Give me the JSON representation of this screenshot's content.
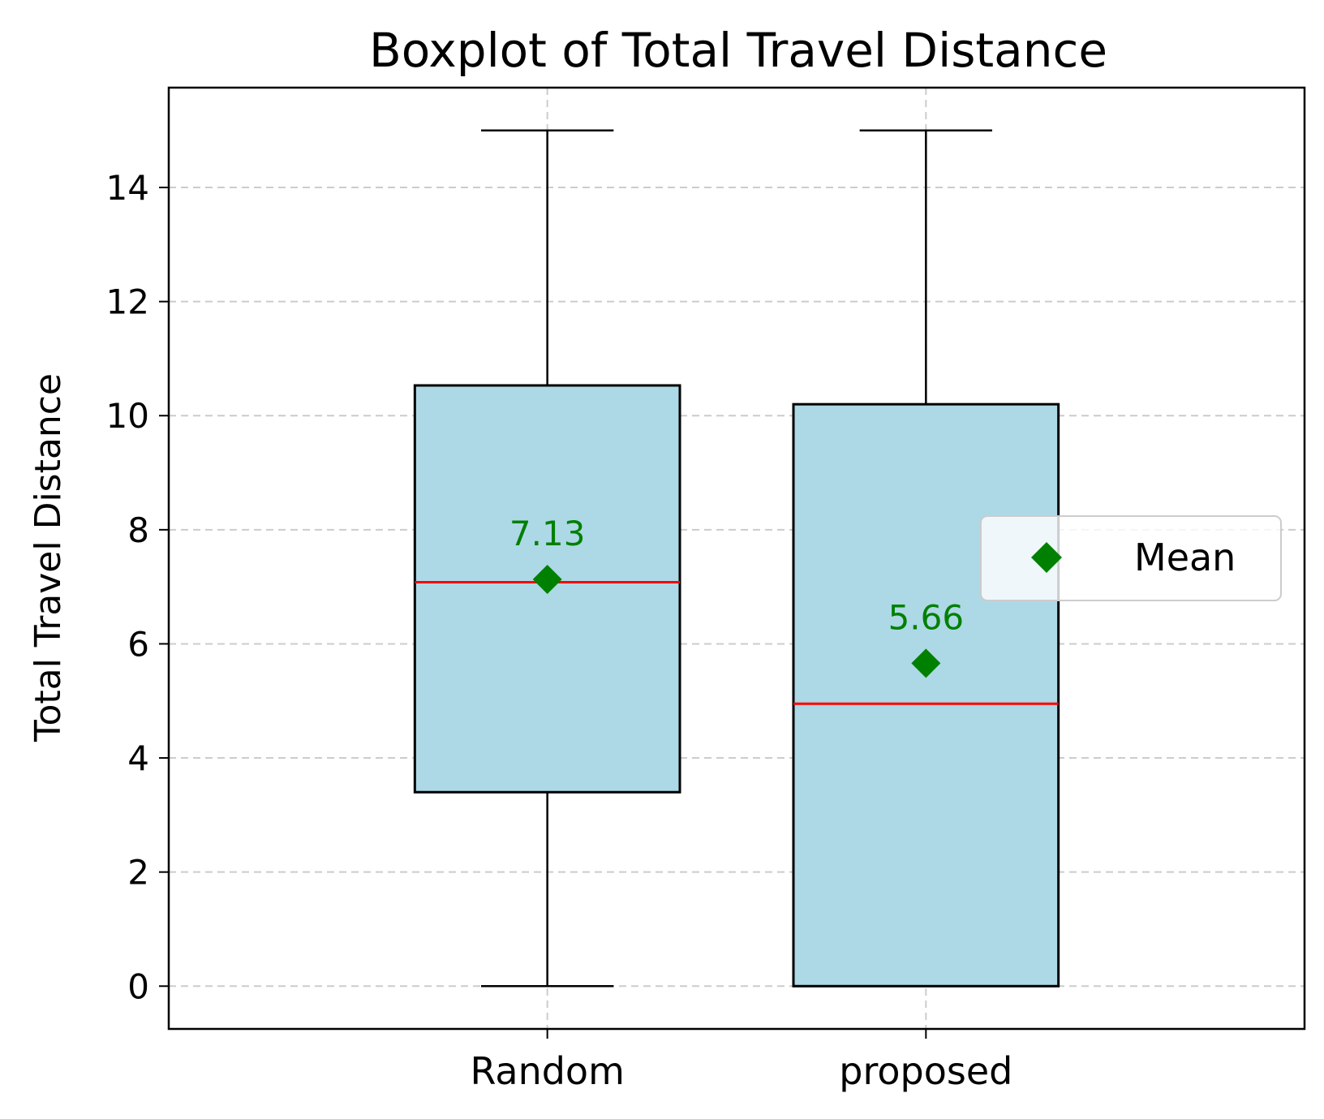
{
  "chart_data": {
    "type": "boxplot",
    "title": "Boxplot of Total Travel Distance",
    "xlabel": "",
    "ylabel": "Total Travel Distance",
    "categories": [
      "Random",
      "proposed"
    ],
    "ylim": [
      -0.75,
      15.75
    ],
    "yticks": [
      0,
      2,
      4,
      6,
      8,
      10,
      12,
      14
    ],
    "grid": true,
    "boxes": [
      {
        "category": "Random",
        "whislo": 0,
        "q1": 3.4,
        "med": 7.08,
        "q3": 10.53,
        "whishi": 15,
        "mean": 7.13,
        "mean_label": "7.13"
      },
      {
        "category": "proposed",
        "whislo": 0,
        "q1": 0,
        "med": 4.95,
        "q3": 10.2,
        "whishi": 15,
        "mean": 5.66,
        "mean_label": "5.66"
      }
    ],
    "legend": {
      "position": "center-right",
      "entries": [
        {
          "label": "Mean",
          "marker": "diamond"
        }
      ]
    },
    "colors": {
      "box_fill": "#add8e6",
      "box_edge": "#000000",
      "median": "#ff0000",
      "mean": "#008000",
      "grid": "#cccccc"
    }
  }
}
